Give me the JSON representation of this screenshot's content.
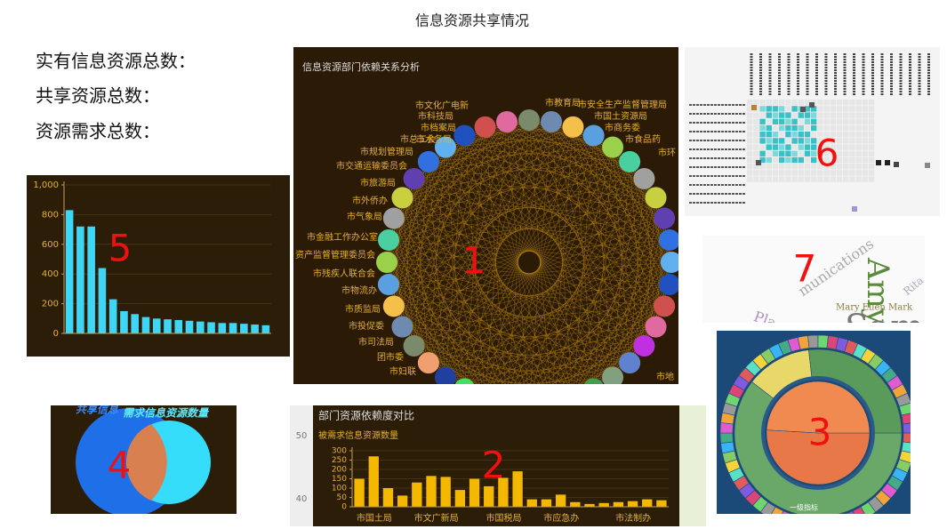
{
  "header": {
    "title": "信息资源共享情况"
  },
  "stats": [
    "实有信息资源总数：",
    "共享资源总数：",
    "资源需求总数："
  ],
  "panel_numbers": [
    "1",
    "2",
    "3",
    "4",
    "5",
    "6",
    "7"
  ],
  "network": {
    "title": "信息资源部门依赖关系分析",
    "nodes": [
      "市文化广电新",
      "市科技局",
      "市档案局",
      "市水务局",
      "市总工会",
      "市规划管理局",
      "市交通运输委员会",
      "市旅游局",
      "市外侨办",
      "市气象局",
      "市金融工作办公室",
      "资产监督管理委员会",
      "市残疾人联合会",
      "市物流办",
      "市质监局",
      "市投促委",
      "市司法局",
      "团市委",
      "市妇联",
      "市教育局",
      "市安全生产监督管理局",
      "市国土资源局",
      "市商务委",
      "市食品药",
      "市环",
      "市地"
    ]
  },
  "venn": {
    "labels": [
      "共享信息",
      "需求信息资源数量"
    ]
  },
  "wordcloud": {
    "words": [
      "Amy",
      "Mary Ellen Mark",
      "munications",
      "Sam",
      "Pla",
      "Rita"
    ]
  },
  "sunburst": {
    "labels": [
      "一级指标"
    ]
  },
  "background_axis": {
    "ticks": [
      "50",
      "40"
    ]
  },
  "chart_data": [
    {
      "type": "bar",
      "categories": [
        null,
        null,
        null,
        null,
        null,
        null,
        null,
        null,
        null,
        null,
        null,
        null,
        null,
        null,
        null,
        null,
        null,
        null,
        null
      ],
      "values": [
        830,
        720,
        720,
        440,
        230,
        150,
        130,
        110,
        100,
        95,
        90,
        85,
        80,
        75,
        70,
        70,
        65,
        60,
        55
      ],
      "color": "#3fd6f5",
      "ylim": [
        0,
        1000
      ],
      "yticks": [
        0,
        200,
        400,
        600,
        800,
        {
          "value": 1000,
          "label": "1,000"
        }
      ],
      "grid": true
    },
    {
      "type": "bar",
      "title": "部门资源依赖度对比",
      "subtitle": "被需求信息资源数量",
      "categories": [
        "市国土局",
        null,
        null,
        null,
        "市文广新局",
        null,
        null,
        null,
        null,
        "市国税局",
        null,
        null,
        null,
        "市应急办",
        null,
        null,
        null,
        null,
        "市法制办",
        null,
        null,
        null
      ],
      "values": [
        150,
        270,
        100,
        60,
        130,
        165,
        160,
        90,
        150,
        110,
        155,
        190,
        40,
        40,
        65,
        25,
        15,
        20,
        25,
        30,
        40,
        35
      ],
      "color": "#f5b800",
      "ylim": [
        0,
        300
      ],
      "yticks": [
        0,
        50,
        100,
        150,
        200,
        250,
        300
      ],
      "grid": true
    }
  ]
}
